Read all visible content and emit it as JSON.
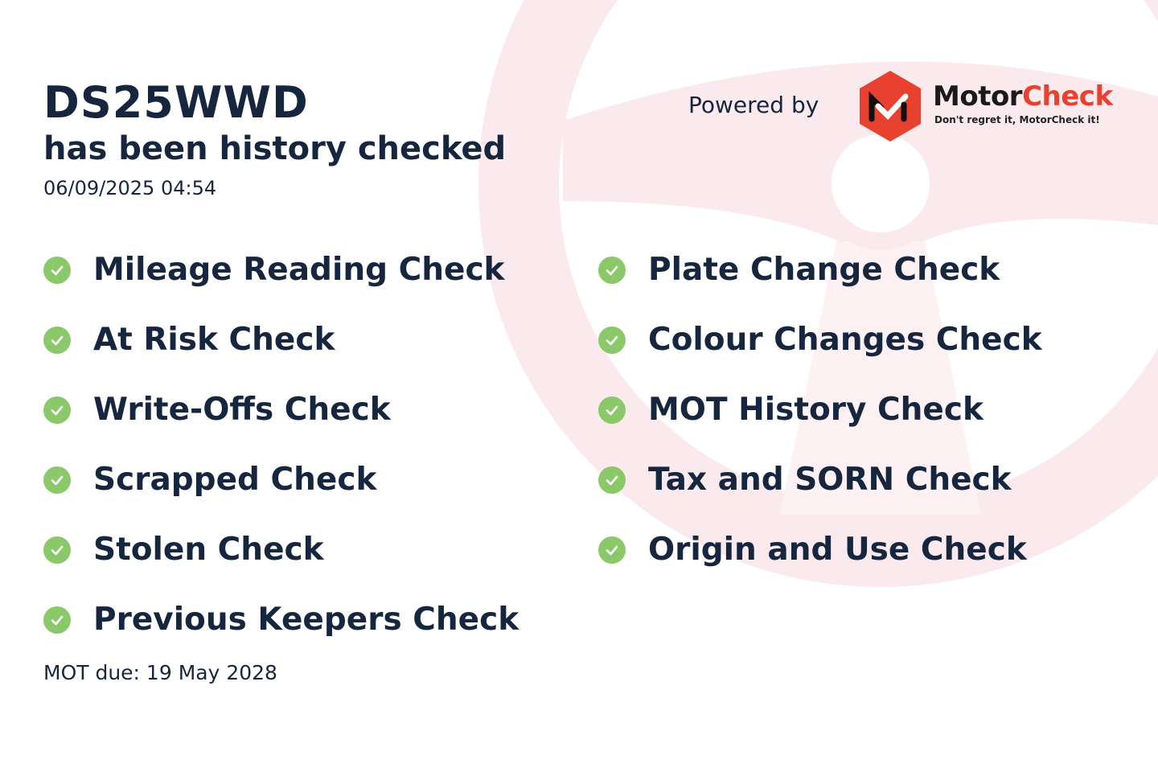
{
  "header": {
    "registration": "DS25WWD",
    "subtitle": "has been history checked",
    "datetime": "06/09/2025 04:54"
  },
  "branding": {
    "powered_by": "Powered by",
    "brand_part1": "Motor",
    "brand_part2": "Check",
    "tagline": "Don't regret it, MotorCheck it!",
    "brand_color": "#e8412f"
  },
  "checks_left": [
    {
      "label": "Mileage Reading Check",
      "status": "passed"
    },
    {
      "label": "At Risk Check",
      "status": "passed"
    },
    {
      "label": "Write-Offs Check",
      "status": "passed"
    },
    {
      "label": "Scrapped Check",
      "status": "passed"
    },
    {
      "label": "Stolen Check",
      "status": "passed"
    },
    {
      "label": "Previous Keepers Check",
      "status": "passed"
    }
  ],
  "checks_right": [
    {
      "label": "Plate Change Check",
      "status": "passed"
    },
    {
      "label": "Colour Changes Check",
      "status": "passed"
    },
    {
      "label": "MOT History Check",
      "status": "passed"
    },
    {
      "label": "Tax and SORN Check",
      "status": "passed"
    },
    {
      "label": "Origin and Use Check",
      "status": "passed"
    }
  ],
  "footer": {
    "mot_due": "MOT due: 19 May 2028"
  },
  "colors": {
    "text": "#16263f",
    "check": "#8bc86a",
    "watermark": "#fbeaed"
  }
}
